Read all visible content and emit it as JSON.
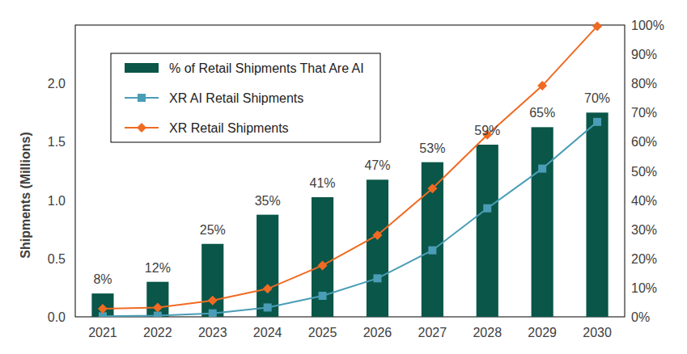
{
  "chart_data": {
    "type": "bar",
    "categories": [
      "2021",
      "2022",
      "2023",
      "2024",
      "2025",
      "2026",
      "2027",
      "2028",
      "2029",
      "2030"
    ],
    "series": [
      {
        "name": "% of Retail Shipments That Are AI",
        "type": "bar",
        "axis": "y2",
        "color": "#0a5649",
        "values": [
          8,
          12,
          25,
          35,
          41,
          47,
          53,
          59,
          65,
          70
        ],
        "value_labels": [
          "8%",
          "12%",
          "25%",
          "35%",
          "41%",
          "47%",
          "53%",
          "59%",
          "65%",
          "70%"
        ]
      },
      {
        "name": "XR AI Retail Shipments",
        "type": "line",
        "color": "#4a9db6",
        "marker": "square",
        "values": [
          0.005,
          0.01,
          0.03,
          0.08,
          0.18,
          0.33,
          0.57,
          0.93,
          1.27,
          1.67
        ]
      },
      {
        "name": "XR Retail Shipments",
        "type": "line",
        "color": "#f06a22",
        "marker": "diamond",
        "values": [
          0.07,
          0.08,
          0.14,
          0.24,
          0.44,
          0.7,
          1.1,
          1.56,
          1.98,
          2.49
        ]
      }
    ],
    "y_label": "Shipments (Millions)",
    "ylim": [
      0,
      2.5
    ],
    "yticks": [
      {
        "value": 0,
        "label": "0.0"
      },
      {
        "value": 0.5,
        "label": "0.5"
      },
      {
        "value": 1,
        "label": "1.0"
      },
      {
        "value": 1.5,
        "label": "1.5"
      },
      {
        "value": 2,
        "label": "2.0"
      }
    ],
    "y2lim": [
      0,
      100
    ],
    "y2ticks": [
      {
        "value": 0,
        "label": "0%"
      },
      {
        "value": 10,
        "label": "10%"
      },
      {
        "value": 20,
        "label": "20%"
      },
      {
        "value": 30,
        "label": "30%"
      },
      {
        "value": 40,
        "label": "40%"
      },
      {
        "value": 50,
        "label": "50%"
      },
      {
        "value": 60,
        "label": "60%"
      },
      {
        "value": 70,
        "label": "70%"
      },
      {
        "value": 80,
        "label": "80%"
      },
      {
        "value": 90,
        "label": "90%"
      },
      {
        "value": 100,
        "label": "100%"
      }
    ],
    "legend": "upper left",
    "data_labels": true
  }
}
